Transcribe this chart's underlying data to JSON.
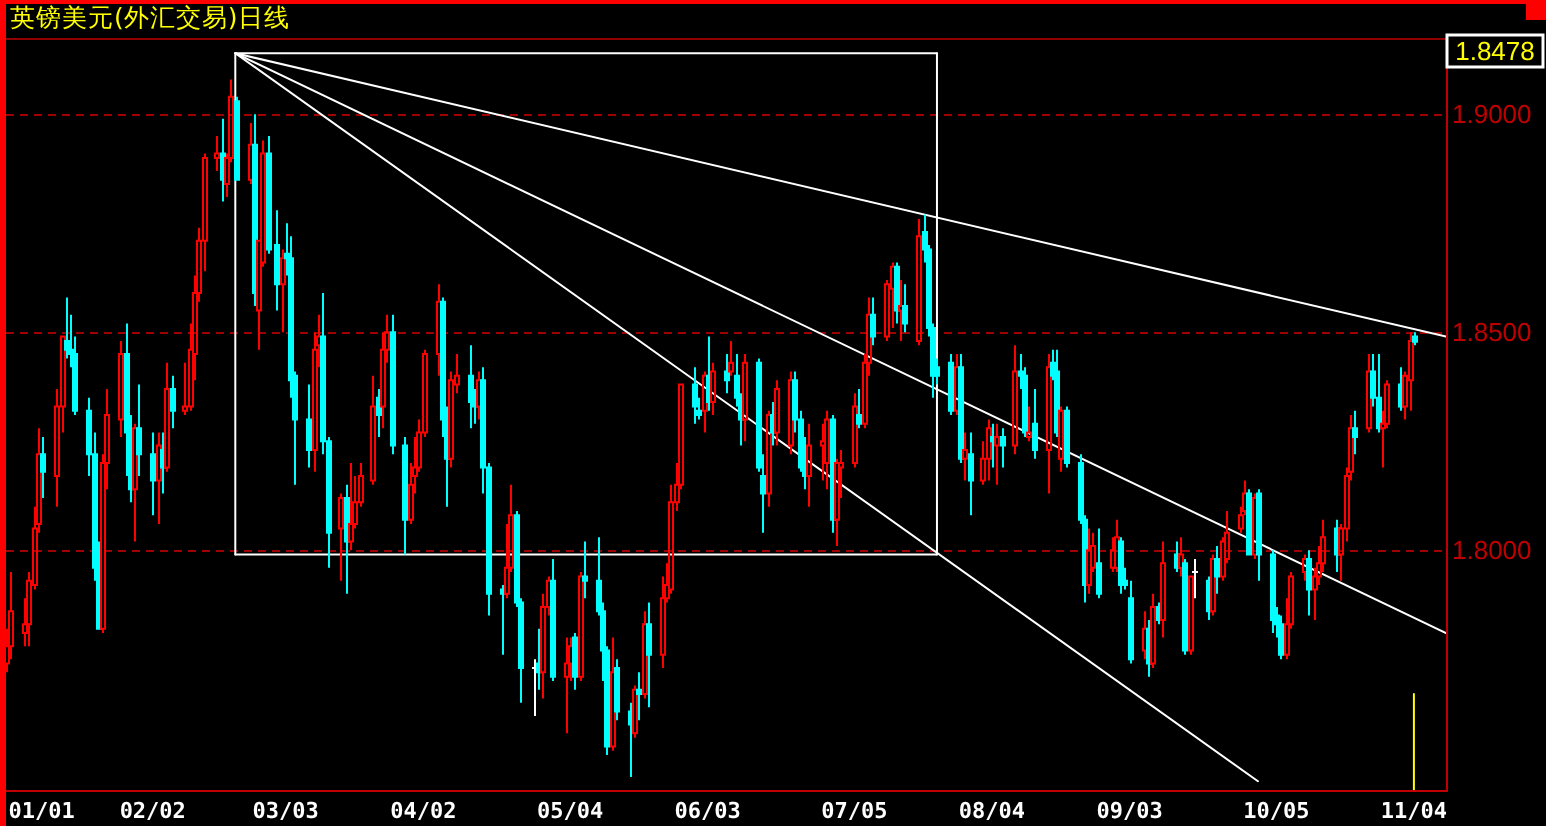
{
  "chart_data": {
    "type": "candlestick",
    "title": "英镑美元(外汇交易)日线",
    "annotations": [
      "1.8478"
    ],
    "xlim": [
      "--01-01",
      "--11-11"
    ],
    "ylim": [
      1.745,
      1.9175
    ],
    "xticks": [
      {
        "value": "--01-01",
        "label": "01/01"
      },
      {
        "value": "--02-02",
        "label": "02/02"
      },
      {
        "value": "--03-03",
        "label": "03/03"
      },
      {
        "value": "--04-02",
        "label": "04/02"
      },
      {
        "value": "--05-04",
        "label": "05/04"
      },
      {
        "value": "--06-03",
        "label": "06/03"
      },
      {
        "value": "--07-05",
        "label": "07/05"
      },
      {
        "value": "--08-04",
        "label": "08/04"
      },
      {
        "value": "--09-03",
        "label": "09/03"
      },
      {
        "value": "--10-05",
        "label": "10/05"
      },
      {
        "value": "--11-04",
        "label": "11/04"
      }
    ],
    "yticks": [
      {
        "value": 1.8,
        "label": "1.8000"
      },
      {
        "value": 1.85,
        "label": "1.8500"
      },
      {
        "value": 1.9,
        "label": "1.9000"
      }
    ],
    "grid": "y",
    "x": [
      "--01-01",
      "--01-02",
      "--01-05",
      "--01-06",
      "--01-07",
      "--01-08",
      "--01-09",
      "--01-12",
      "--01-13",
      "--01-14",
      "--01-15",
      "--01-16",
      "--01-19",
      "--01-20",
      "--01-21",
      "--01-22",
      "--01-23",
      "--01-26",
      "--01-27",
      "--01-28",
      "--01-29",
      "--01-30",
      "--02-02",
      "--02-03",
      "--02-04",
      "--02-05",
      "--02-06",
      "--02-09",
      "--02-10",
      "--02-11",
      "--02-12",
      "--02-13",
      "--02-16",
      "--02-17",
      "--02-18",
      "--02-19",
      "--02-20",
      "--02-23",
      "--02-24",
      "--02-25",
      "--02-26",
      "--02-27",
      "--03-01",
      "--03-02",
      "--03-03",
      "--03-04",
      "--03-05",
      "--03-08",
      "--03-09",
      "--03-10",
      "--03-11",
      "--03-12",
      "--03-15",
      "--03-16",
      "--03-17",
      "--03-18",
      "--03-19",
      "--03-22",
      "--03-23",
      "--03-24",
      "--03-25",
      "--03-26",
      "--03-29",
      "--03-30",
      "--03-31",
      "--04-01",
      "--04-02",
      "--04-05",
      "--04-06",
      "--04-07",
      "--04-08",
      "--04-09",
      "--04-12",
      "--04-13",
      "--04-14",
      "--04-15",
      "--04-16",
      "--04-19",
      "--04-20",
      "--04-21",
      "--04-22",
      "--04-23",
      "--04-26",
      "--04-27",
      "--04-28",
      "--04-29",
      "--04-30",
      "--05-03",
      "--05-04",
      "--05-05",
      "--05-06",
      "--05-07",
      "--05-10",
      "--05-11",
      "--05-12",
      "--05-13",
      "--05-14",
      "--05-17",
      "--05-18",
      "--05-19",
      "--05-20",
      "--05-21",
      "--05-24",
      "--05-25",
      "--05-26",
      "--05-27",
      "--05-28",
      "--05-31",
      "--06-01",
      "--06-02",
      "--06-03",
      "--06-04",
      "--06-07",
      "--06-08",
      "--06-09",
      "--06-10",
      "--06-11",
      "--06-14",
      "--06-15",
      "--06-16",
      "--06-17",
      "--06-18",
      "--06-21",
      "--06-22",
      "--06-23",
      "--06-24",
      "--06-25",
      "--06-28",
      "--06-29",
      "--06-30",
      "--07-01",
      "--07-02",
      "--07-05",
      "--07-06",
      "--07-07",
      "--07-08",
      "--07-09",
      "--07-12",
      "--07-13",
      "--07-14",
      "--07-15",
      "--07-16",
      "--07-19",
      "--07-20",
      "--07-21",
      "--07-22",
      "--07-23",
      "--07-26",
      "--07-27",
      "--07-28",
      "--07-29",
      "--07-30",
      "--08-02",
      "--08-03",
      "--08-04",
      "--08-05",
      "--08-06",
      "--08-09",
      "--08-10",
      "--08-11",
      "--08-12",
      "--08-13",
      "--08-16",
      "--08-17",
      "--08-18",
      "--08-19",
      "--08-20",
      "--08-23",
      "--08-24",
      "--08-25",
      "--08-26",
      "--08-27",
      "--08-30",
      "--08-31",
      "--09-01",
      "--09-02",
      "--09-03",
      "--09-06",
      "--09-07",
      "--09-08",
      "--09-09",
      "--09-10",
      "--09-13",
      "--09-14",
      "--09-15",
      "--09-16",
      "--09-17",
      "--09-20",
      "--09-21",
      "--09-22",
      "--09-23",
      "--09-24",
      "--09-27",
      "--09-28",
      "--09-29",
      "--09-30",
      "--10-01",
      "--10-04",
      "--10-05",
      "--10-06",
      "--10-07",
      "--10-08",
      "--10-11",
      "--10-12",
      "--10-13",
      "--10-14",
      "--10-15",
      "--10-18",
      "--10-19",
      "--10-20",
      "--10-21",
      "--10-22",
      "--10-25",
      "--10-26",
      "--10-27",
      "--10-28",
      "--10-29",
      "--11-01",
      "--11-02",
      "--11-03",
      "--11-04"
    ],
    "ohlc": [
      [
        1.774,
        1.782,
        1.772,
        1.778
      ],
      [
        1.778,
        1.795,
        1.775,
        1.786
      ],
      [
        1.781,
        1.789,
        1.778,
        1.783
      ],
      [
        1.783,
        1.795,
        1.778,
        1.793
      ],
      [
        1.792,
        1.81,
        1.791,
        1.805
      ],
      [
        1.806,
        1.828,
        1.804,
        1.822
      ],
      [
        1.822,
        1.826,
        1.812,
        1.818
      ],
      [
        1.817,
        1.837,
        1.81,
        1.833
      ],
      [
        1.833,
        1.849,
        1.827,
        1.849
      ],
      [
        1.848,
        1.858,
        1.844,
        1.846
      ],
      [
        1.846,
        1.854,
        1.842,
        1.845
      ],
      [
        1.845,
        1.849,
        1.831,
        1.832
      ],
      [
        1.832,
        1.835,
        1.817,
        1.822
      ],
      [
        1.822,
        1.827,
        1.793,
        1.796
      ],
      [
        1.799,
        1.802,
        1.782,
        1.782
      ],
      [
        1.782,
        1.822,
        1.781,
        1.82
      ],
      [
        1.82,
        1.837,
        1.814,
        1.831
      ],
      [
        1.83,
        1.848,
        1.826,
        1.845
      ],
      [
        1.845,
        1.852,
        1.817,
        1.827
      ],
      [
        1.827,
        1.831,
        1.811,
        1.814
      ],
      [
        1.814,
        1.829,
        1.802,
        1.828
      ],
      [
        1.828,
        1.838,
        1.817,
        1.822
      ],
      [
        1.822,
        1.827,
        1.808,
        1.816
      ],
      [
        1.816,
        1.827,
        1.806,
        1.824
      ],
      [
        1.823,
        1.827,
        1.813,
        1.819
      ],
      [
        1.819,
        1.843,
        1.818,
        1.837
      ],
      [
        1.837,
        1.84,
        1.828,
        1.832
      ],
      [
        1.832,
        1.843,
        1.831,
        1.833
      ],
      [
        1.833,
        1.852,
        1.832,
        1.846
      ],
      [
        1.845,
        1.863,
        1.839,
        1.859
      ],
      [
        1.859,
        1.874,
        1.857,
        1.871
      ],
      [
        1.871,
        1.891,
        1.864,
        1.89
      ],
      [
        1.89,
        1.895,
        1.887,
        1.891
      ],
      [
        1.891,
        1.899,
        1.88,
        1.885
      ],
      [
        1.884,
        1.891,
        1.881,
        1.89
      ],
      [
        1.89,
        1.908,
        1.889,
        1.904
      ],
      [
        1.903,
        1.904,
        1.885,
        1.885
      ],
      [
        1.885,
        1.898,
        1.884,
        1.893
      ],
      [
        1.893,
        1.9,
        1.856,
        1.859
      ],
      [
        1.855,
        1.871,
        1.846,
        1.871
      ],
      [
        1.866,
        1.894,
        1.865,
        1.891
      ],
      [
        1.891,
        1.895,
        1.868,
        1.869
      ],
      [
        1.87,
        1.878,
        1.855,
        1.861
      ],
      [
        1.861,
        1.869,
        1.85,
        1.867
      ],
      [
        1.868,
        1.875,
        1.863,
        1.867
      ],
      [
        1.867,
        1.872,
        1.835,
        1.839
      ],
      [
        1.84,
        1.841,
        1.815,
        1.83
      ],
      [
        1.83,
        1.838,
        1.819,
        1.823
      ],
      [
        1.823,
        1.85,
        1.818,
        1.846
      ],
      [
        1.847,
        1.854,
        1.842,
        1.849
      ],
      [
        1.849,
        1.859,
        1.822,
        1.825
      ],
      [
        1.825,
        1.826,
        1.796,
        1.804
      ],
      [
        1.805,
        1.813,
        1.793,
        1.812
      ],
      [
        1.812,
        1.815,
        1.79,
        1.802
      ],
      [
        1.802,
        1.82,
        1.8,
        1.806
      ],
      [
        1.806,
        1.817,
        1.805,
        1.811
      ],
      [
        1.811,
        1.82,
        1.81,
        1.817
      ],
      [
        1.816,
        1.84,
        1.815,
        1.833
      ],
      [
        1.835,
        1.837,
        1.826,
        1.831
      ],
      [
        1.833,
        1.85,
        1.828,
        1.846
      ],
      [
        1.846,
        1.854,
        1.843,
        1.85
      ],
      [
        1.85,
        1.854,
        1.822,
        1.824
      ],
      [
        1.824,
        1.826,
        1.799,
        1.807
      ],
      [
        1.807,
        1.82,
        1.806,
        1.815
      ],
      [
        1.817,
        1.826,
        1.813,
        1.819
      ],
      [
        1.819,
        1.83,
        1.818,
        1.827
      ],
      [
        1.827,
        1.846,
        1.826,
        1.845
      ],
      [
        1.845,
        1.861,
        1.84,
        1.857
      ],
      [
        1.857,
        1.858,
        1.826,
        1.83
      ],
      [
        1.832,
        1.833,
        1.81,
        1.821
      ],
      [
        1.821,
        1.841,
        1.819,
        1.839
      ],
      [
        1.838,
        1.845,
        1.836,
        1.84
      ],
      [
        1.84,
        1.847,
        1.828,
        1.834
      ],
      [
        1.834,
        1.837,
        1.829,
        1.833
      ],
      [
        1.833,
        1.841,
        1.83,
        1.839
      ],
      [
        1.839,
        1.842,
        1.813,
        1.819
      ],
      [
        1.819,
        1.82,
        1.785,
        1.79
      ],
      [
        1.791,
        1.792,
        1.776,
        1.79
      ],
      [
        1.79,
        1.806,
        1.789,
        1.796
      ],
      [
        1.796,
        1.815,
        1.795,
        1.808
      ],
      [
        1.808,
        1.809,
        1.787,
        1.788
      ],
      [
        1.788,
        1.789,
        1.765,
        1.773
      ],
      [
        1.773,
        1.775,
        1.762,
        1.773
      ],
      [
        1.774,
        1.782,
        1.768,
        1.772
      ],
      [
        1.772,
        1.79,
        1.766,
        1.787
      ],
      [
        1.787,
        1.794,
        1.785,
        1.793
      ],
      [
        1.793,
        1.798,
        1.77,
        1.771
      ],
      [
        1.771,
        1.78,
        1.758,
        1.774
      ],
      [
        1.774,
        1.78,
        1.77,
        1.778
      ],
      [
        1.78,
        1.781,
        1.768,
        1.771
      ],
      [
        1.771,
        1.795,
        1.77,
        1.794
      ],
      [
        1.794,
        1.802,
        1.789,
        1.793
      ],
      [
        1.793,
        1.803,
        1.785,
        1.786
      ],
      [
        1.786,
        1.788,
        1.77,
        1.777
      ],
      [
        1.777,
        1.778,
        1.753,
        1.755
      ],
      [
        1.755,
        1.78,
        1.754,
        1.772
      ],
      [
        1.773,
        1.775,
        1.761,
        1.763
      ],
      [
        1.763,
        1.765,
        1.748,
        1.76
      ],
      [
        1.758,
        1.769,
        1.757,
        1.768
      ],
      [
        1.768,
        1.772,
        1.761,
        1.767
      ],
      [
        1.767,
        1.786,
        1.766,
        1.783
      ],
      [
        1.783,
        1.788,
        1.764,
        1.776
      ],
      [
        1.776,
        1.794,
        1.773,
        1.789
      ],
      [
        1.789,
        1.797,
        1.788,
        1.792
      ],
      [
        1.791,
        1.815,
        1.79,
        1.811
      ],
      [
        1.811,
        1.82,
        1.809,
        1.815
      ],
      [
        1.815,
        1.838,
        1.814,
        1.838
      ],
      [
        1.838,
        1.842,
        1.829,
        1.833
      ],
      [
        1.832,
        1.835,
        1.83,
        1.831
      ],
      [
        1.832,
        1.841,
        1.827,
        1.84
      ],
      [
        1.84,
        1.849,
        1.832,
        1.834
      ],
      [
        1.834,
        1.843,
        1.831,
        1.841
      ],
      [
        1.841,
        1.845,
        1.836,
        1.839
      ],
      [
        1.841,
        1.848,
        1.84,
        1.843
      ],
      [
        1.84,
        1.845,
        1.833,
        1.835
      ],
      [
        1.835,
        1.836,
        1.824,
        1.83
      ],
      [
        1.83,
        1.845,
        1.825,
        1.843
      ],
      [
        1.843,
        1.844,
        1.818,
        1.819
      ],
      [
        1.817,
        1.822,
        1.804,
        1.813
      ],
      [
        1.813,
        1.832,
        1.81,
        1.831
      ],
      [
        1.831,
        1.834,
        1.824,
        1.827
      ],
      [
        1.827,
        1.839,
        1.824,
        1.837
      ],
      [
        1.824,
        1.841,
        1.822,
        1.839
      ],
      [
        1.839,
        1.841,
        1.827,
        1.83
      ],
      [
        1.83,
        1.832,
        1.818,
        1.819
      ],
      [
        1.822,
        1.826,
        1.814,
        1.817
      ],
      [
        1.817,
        1.829,
        1.81,
        1.824
      ],
      [
        1.824,
        1.829,
        1.816,
        1.825
      ],
      [
        1.82,
        1.832,
        1.814,
        1.83
      ],
      [
        1.83,
        1.831,
        1.804,
        1.807
      ],
      [
        1.807,
        1.821,
        1.801,
        1.82
      ],
      [
        1.819,
        1.823,
        1.812,
        1.82
      ],
      [
        1.82,
        1.836,
        1.819,
        1.833
      ],
      [
        1.831,
        1.837,
        1.828,
        1.829
      ],
      [
        1.829,
        1.845,
        1.828,
        1.843
      ],
      [
        1.843,
        1.858,
        1.84,
        1.854
      ],
      [
        1.854,
        1.858,
        1.847,
        1.849
      ],
      [
        1.849,
        1.862,
        1.848,
        1.861
      ],
      [
        1.86,
        1.866,
        1.851,
        1.865
      ],
      [
        1.865,
        1.866,
        1.852,
        1.855
      ],
      [
        1.855,
        1.862,
        1.848,
        1.856
      ],
      [
        1.856,
        1.861,
        1.85,
        1.852
      ],
      [
        1.848,
        1.876,
        1.847,
        1.872
      ],
      [
        1.873,
        1.877,
        1.866,
        1.869
      ],
      [
        1.869,
        1.87,
        1.849,
        1.851
      ],
      [
        1.851,
        1.852,
        1.835,
        1.84
      ],
      [
        1.842,
        1.844,
        1.838,
        1.84
      ],
      [
        1.843,
        1.845,
        1.831,
        1.832
      ],
      [
        1.832,
        1.845,
        1.831,
        1.842
      ],
      [
        1.842,
        1.845,
        1.82,
        1.821
      ],
      [
        1.821,
        1.827,
        1.816,
        1.823
      ],
      [
        1.822,
        1.827,
        1.808,
        1.816
      ],
      [
        1.816,
        1.825,
        1.815,
        1.821
      ],
      [
        1.821,
        1.83,
        1.816,
        1.828
      ],
      [
        1.826,
        1.829,
        1.819,
        1.825
      ],
      [
        1.824,
        1.829,
        1.815,
        1.826
      ],
      [
        1.826,
        1.828,
        1.819,
        1.824
      ],
      [
        1.824,
        1.847,
        1.822,
        1.841
      ],
      [
        1.841,
        1.845,
        1.837,
        1.84
      ],
      [
        1.84,
        1.842,
        1.826,
        1.827
      ],
      [
        1.826,
        1.833,
        1.825,
        1.827
      ],
      [
        1.829,
        1.837,
        1.821,
        1.823
      ],
      [
        1.823,
        1.845,
        1.813,
        1.842
      ],
      [
        1.843,
        1.846,
        1.839,
        1.84
      ],
      [
        1.841,
        1.846,
        1.826,
        1.827
      ],
      [
        1.821,
        1.833,
        1.818,
        1.832
      ],
      [
        1.832,
        1.833,
        1.819,
        1.82
      ],
      [
        1.82,
        1.822,
        1.806,
        1.807
      ],
      [
        1.807,
        1.808,
        1.788,
        1.792
      ],
      [
        1.792,
        1.805,
        1.79,
        1.8
      ],
      [
        1.796,
        1.804,
        1.795,
        1.801
      ],
      [
        1.797,
        1.805,
        1.789,
        1.79
      ],
      [
        1.796,
        1.803,
        1.795,
        1.8
      ],
      [
        1.796,
        1.807,
        1.795,
        1.803
      ],
      [
        1.802,
        1.803,
        1.79,
        1.792
      ],
      [
        1.793,
        1.796,
        1.791,
        1.792
      ],
      [
        1.789,
        1.793,
        1.774,
        1.775
      ],
      [
        1.777,
        1.786,
        1.775,
        1.782
      ],
      [
        1.782,
        1.784,
        1.771,
        1.774
      ],
      [
        1.774,
        1.79,
        1.773,
        1.787
      ],
      [
        1.787,
        1.788,
        1.783,
        1.784
      ],
      [
        1.784,
        1.802,
        1.78,
        1.797
      ],
      [
        1.799,
        1.802,
        1.795,
        1.796
      ],
      [
        1.796,
        1.803,
        1.794,
        1.799
      ],
      [
        1.797,
        1.798,
        1.776,
        1.777
      ],
      [
        1.777,
        1.794,
        1.776,
        1.794
      ],
      [
        1.795,
        1.798,
        1.789,
        1.795
      ],
      [
        1.793,
        1.794,
        1.784,
        1.786
      ],
      [
        1.786,
        1.799,
        1.785,
        1.798
      ],
      [
        1.798,
        1.801,
        1.79,
        1.794
      ],
      [
        1.794,
        1.803,
        1.793,
        1.802
      ],
      [
        1.798,
        1.809,
        1.797,
        1.804
      ],
      [
        1.805,
        1.81,
        1.804,
        1.808
      ],
      [
        1.809,
        1.816,
        1.808,
        1.813
      ],
      [
        1.813,
        1.814,
        1.799,
        1.799
      ],
      [
        1.799,
        1.813,
        1.798,
        1.812
      ],
      [
        1.813,
        1.814,
        1.793,
        1.799
      ],
      [
        1.799,
        1.8,
        1.781,
        1.784
      ],
      [
        1.785,
        1.787,
        1.78,
        1.783
      ],
      [
        1.783,
        1.785,
        1.775,
        1.776
      ],
      [
        1.776,
        1.789,
        1.775,
        1.783
      ],
      [
        1.783,
        1.795,
        1.782,
        1.794
      ],
      [
        1.795,
        1.799,
        1.793,
        1.798
      ],
      [
        1.798,
        1.8,
        1.785,
        1.791
      ],
      [
        1.791,
        1.796,
        1.784,
        1.794
      ],
      [
        1.794,
        1.801,
        1.792,
        1.797
      ],
      [
        1.797,
        1.807,
        1.795,
        1.803
      ],
      [
        1.805,
        1.807,
        1.795,
        1.799
      ],
      [
        1.799,
        1.806,
        1.793,
        1.805
      ],
      [
        1.805,
        1.819,
        1.802,
        1.817
      ],
      [
        1.818,
        1.831,
        1.816,
        1.828
      ],
      [
        1.828,
        1.832,
        1.822,
        1.826
      ],
      [
        1.828,
        1.845,
        1.827,
        1.841
      ],
      [
        1.841,
        1.845,
        1.833,
        1.835
      ],
      [
        1.835,
        1.845,
        1.827,
        1.828
      ],
      [
        1.828,
        1.832,
        1.819,
        1.829
      ],
      [
        1.829,
        1.839,
        1.828,
        1.838
      ],
      [
        1.838,
        1.842,
        1.832,
        1.833
      ],
      [
        1.833,
        1.841,
        1.83,
        1.84
      ],
      [
        1.839,
        1.85,
        1.832,
        1.848
      ],
      [
        1.849,
        1.85,
        1.847,
        1.8478
      ]
    ],
    "series": [
      {
        "type": "line",
        "color": "#ffffff",
        "x": [
          "--02-20",
          "--07-23"
        ],
        "values": [
          1.914,
          1.914
        ]
      },
      {
        "type": "line",
        "color": "#ffffff",
        "x": [
          "--02-20",
          "--07-23"
        ],
        "values": [
          1.799,
          1.799
        ]
      },
      {
        "type": "line",
        "color": "#ffffff",
        "x": [
          "--02-20",
          "--02-20"
        ],
        "values": [
          1.914,
          1.799
        ]
      },
      {
        "type": "line",
        "color": "#ffffff",
        "x": [
          "--07-23",
          "--07-23"
        ],
        "values": [
          1.914,
          1.799
        ]
      },
      {
        "type": "line",
        "color": "#ffffff",
        "x": [
          "--02-20",
          "--11-11"
        ],
        "values": [
          1.914,
          1.849
        ]
      },
      {
        "type": "line",
        "color": "#ffffff",
        "x": [
          "--02-20",
          "--11-11"
        ],
        "values": [
          1.914,
          1.781
        ]
      },
      {
        "type": "line",
        "color": "#ffffff",
        "x": [
          "--02-20",
          "--10-01"
        ],
        "values": [
          1.914,
          1.747
        ]
      },
      {
        "type": "line",
        "color": "#ffff00",
        "x": [
          "--11-04",
          "--11-04"
        ],
        "values": [
          1.745,
          1.767
        ]
      }
    ]
  }
}
